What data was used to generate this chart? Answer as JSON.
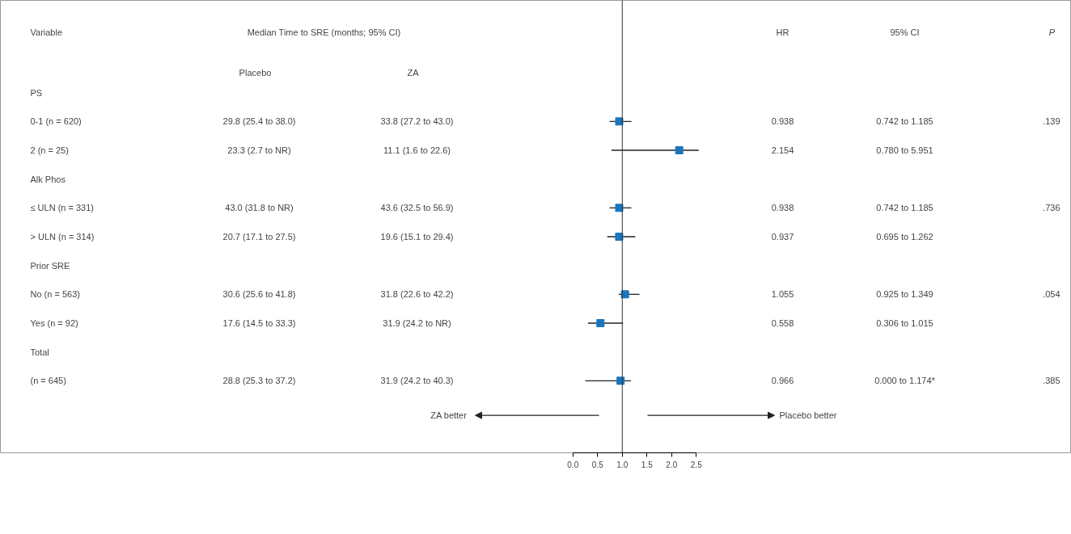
{
  "chart_data": {
    "type": "scatter",
    "orientation": "horizontal",
    "categories": [
      "PS",
      "0-1 (n = 620)",
      "2 (n = 25)",
      "Alk Phos",
      "≤ ULN (n = 331)",
      "> ULN (n = 314)",
      "Prior SRE",
      "No (n = 563)",
      "Yes (n = 92)",
      "Total",
      "(n = 645)"
    ],
    "values": [
      null,
      0.938,
      2.154,
      null,
      0.938,
      0.937,
      null,
      1.055,
      0.558,
      null,
      0.966
    ],
    "errors": [
      null,
      [
        0.742,
        1.185
      ],
      [
        0.78,
        2.55
      ],
      null,
      [
        0.742,
        1.185
      ],
      [
        0.695,
        1.262
      ],
      null,
      [
        0.925,
        1.349
      ],
      [
        0.306,
        1.015
      ],
      null,
      [
        0.25,
        1.174
      ]
    ],
    "color": "#1a75bc",
    "marker": "square",
    "xlim": [
      -11.6,
      10.1
    ],
    "xticks": [
      {
        "value": 0,
        "label": "0.0"
      },
      {
        "value": 0.5,
        "label": "0.5"
      },
      {
        "value": 1,
        "label": "1.0"
      },
      {
        "value": 1.5,
        "label": "1.5"
      },
      {
        "value": 2,
        "label": "2.0"
      },
      {
        "value": 2.5,
        "label": "2.5"
      }
    ],
    "ref_lines": [
      {
        "axis": "x",
        "value": 1,
        "color": "#333333"
      }
    ],
    "annotations": [
      "Variable",
      "Median Time to SRE (months; 95% CI)",
      "HR",
      "95% CI",
      "P",
      "Placebo",
      "ZA",
      "29.8 (25.4 to 38.0)",
      "33.8 (27.2 to 43.0)",
      "0.938",
      "0.742 to 1.185",
      ".139",
      "23.3 (2.7 to NR)",
      "11.1 (1.6 to 22.6)",
      "2.154",
      "0.780 to 5.951",
      "43.0 (31.8 to NR)",
      "43.6 (32.5 to 56.9)",
      "0.938",
      "0.742 to 1.185",
      ".736",
      "20.7 (17.1 to 27.5)",
      "19.6 (15.1 to 29.4)",
      "0.937",
      "0.695 to 1.262",
      "30.6 (25.6 to 41.8)",
      "31.8 (22.6 to 42.2)",
      "1.055",
      "0.925 to 1.349",
      ".054",
      "17.6 (14.5 to 33.3)",
      "31.9 (24.2 to NR)",
      "0.558",
      "0.306 to 1.015",
      "28.8 (25.3 to 37.2)",
      "31.9 (24.2 to 40.3)",
      "0.966",
      "0.000 to 1.174*",
      ".385",
      "ZA better",
      "Placebo better"
    ]
  }
}
